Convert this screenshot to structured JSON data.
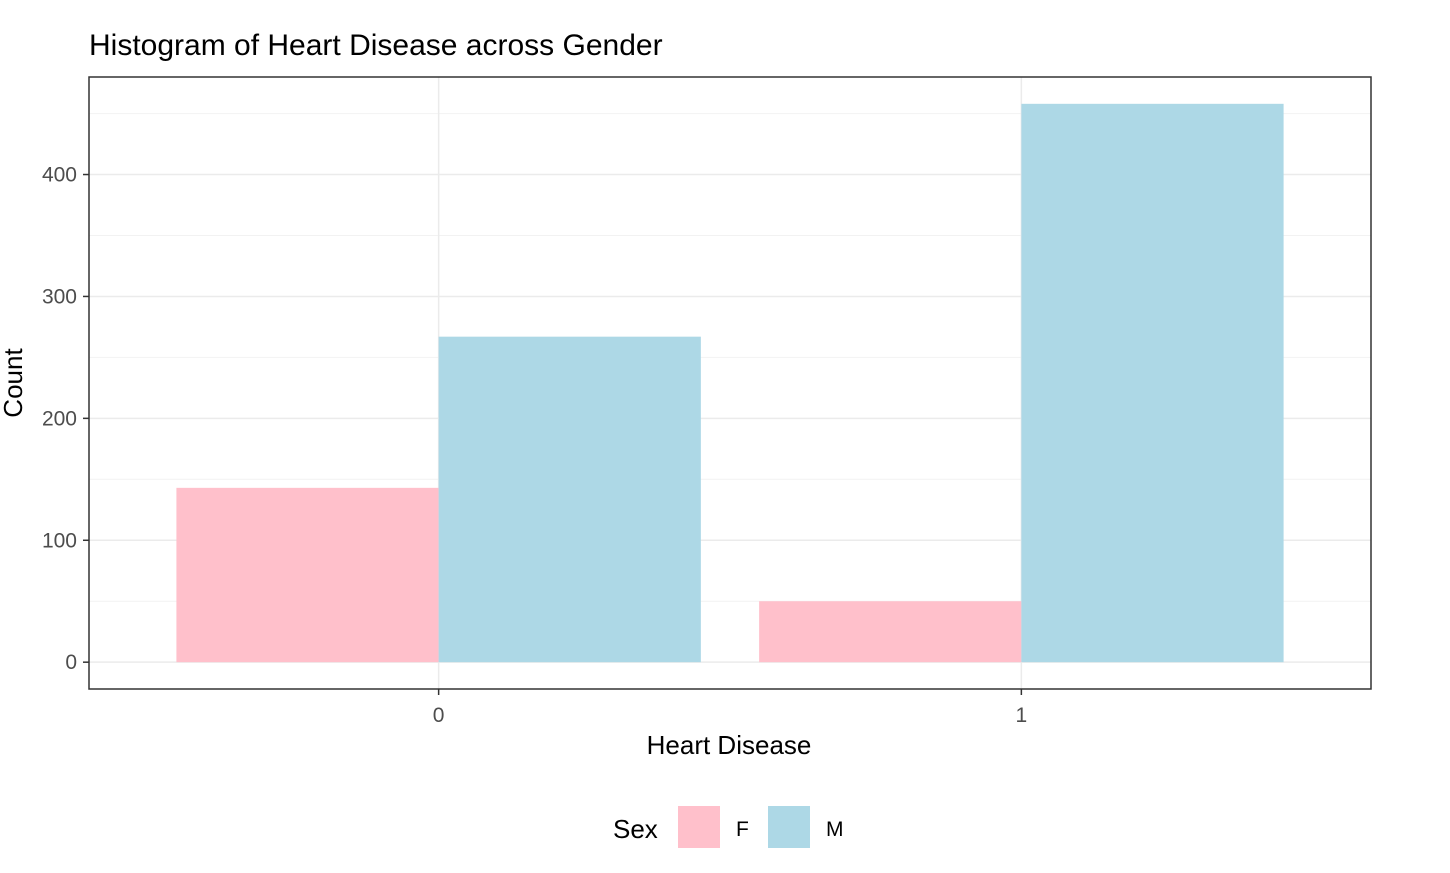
{
  "chart_data": {
    "type": "bar",
    "title": "Histogram of Heart Disease across Gender",
    "xlabel": "Heart Disease",
    "ylabel": "Count",
    "categories": [
      "0",
      "1"
    ],
    "series": [
      {
        "name": "F",
        "values": [
          143,
          50
        ],
        "color": "#FFC0CB"
      },
      {
        "name": "M",
        "values": [
          267,
          458
        ],
        "color": "#ADD8E6"
      }
    ],
    "ylim": [
      -22,
      480
    ],
    "yticks": [
      0,
      100,
      200,
      300,
      400
    ],
    "grid": true,
    "legend": {
      "title": "Sex",
      "position": "bottom",
      "items": [
        {
          "label": "F",
          "color": "#FFC0CB"
        },
        {
          "label": "M",
          "color": "#ADD8E6"
        }
      ]
    }
  }
}
